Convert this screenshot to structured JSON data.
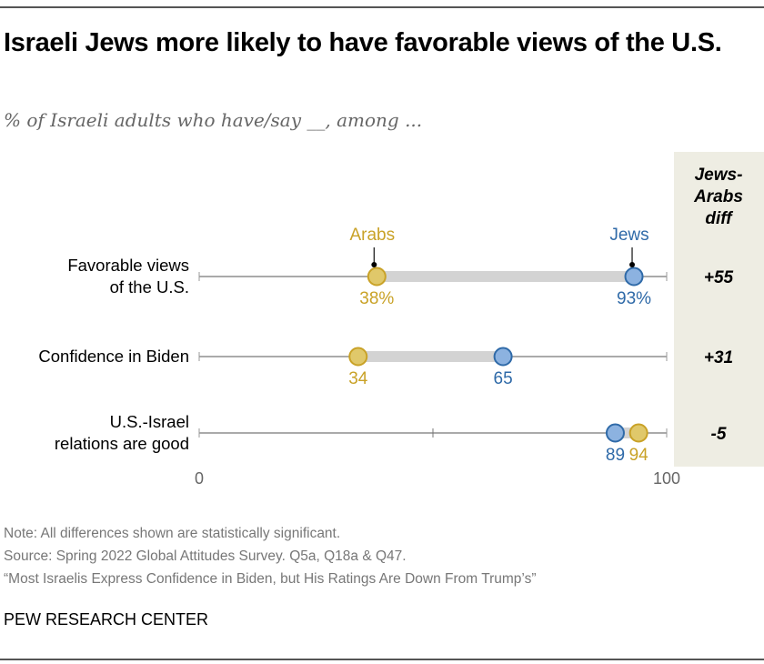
{
  "title": "Israeli Jews more likely to have favorable views of the U.S.",
  "subtitle": "% of Israeli adults who have/say __, among ...",
  "colors": {
    "arabs": "#c9a227",
    "arabs_fill": "#e0c86a",
    "jews": "#2f6aa8",
    "jews_fill": "#8cb2e0",
    "connector": "#d3d3d3",
    "diff_bg": "#eeede3"
  },
  "chart_data": {
    "type": "dot-plot",
    "title": "Israeli Jews more likely to have favorable views of the U.S.",
    "subtitle": "% of Israeli adults who have/say __, among ...",
    "xlim": [
      0,
      100
    ],
    "x_ticks": [
      0,
      50,
      100
    ],
    "x_tick_labels": [
      "0",
      "",
      "100"
    ],
    "categories": [
      "Favorable views of the U.S.",
      "Confidence in Biden",
      "U.S.-Israel relations are good"
    ],
    "category_lines": [
      [
        "Favorable views",
        "of the U.S."
      ],
      [
        "Confidence in Biden"
      ],
      [
        "U.S.-Israel",
        "relations are good"
      ]
    ],
    "series": [
      {
        "name": "Arabs",
        "values": [
          38,
          34,
          94
        ],
        "labels": [
          "38%",
          "34",
          "94"
        ]
      },
      {
        "name": "Jews",
        "values": [
          93,
          65,
          89
        ],
        "labels": [
          "93%",
          "65",
          "89"
        ]
      }
    ],
    "legend": "inline-top-row",
    "diff_column": {
      "header": [
        "Jews-",
        "Arabs",
        "diff"
      ],
      "values": [
        "+55",
        "+31",
        "-5"
      ]
    }
  },
  "footer": {
    "note": "Note: All differences shown are statistically significant.",
    "source": "Source: Spring 2022 Global Attitudes Survey. Q5a, Q18a & Q47.",
    "report": "“Most Israelis Express Confidence in Biden, but His Ratings Are Down From Trump’s”",
    "brand": "PEW RESEARCH CENTER"
  }
}
